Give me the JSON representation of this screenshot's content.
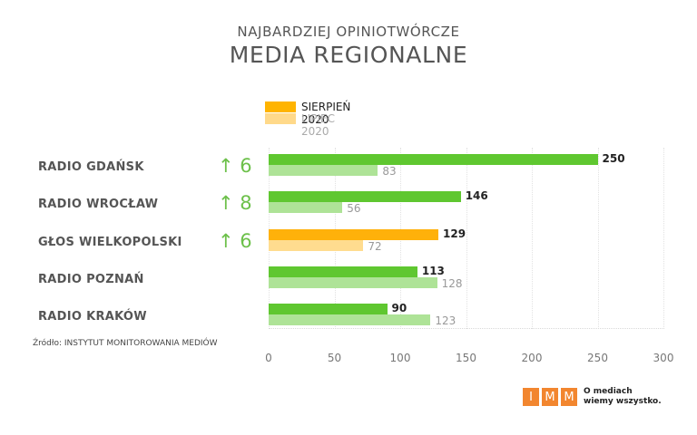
{
  "title": {
    "line1": "NAJBARDZIEJ OPINIOTWÓRCZE",
    "line2": "MEDIA REGIONALNE"
  },
  "legend": [
    {
      "label": "SIERPIEŃ 2020",
      "color": "#ffb400",
      "text_color": "#222222"
    },
    {
      "label": "LIPIEC 2020",
      "color": "#ffd98a",
      "text_color": "#aaaaaa"
    }
  ],
  "colors": {
    "current_green": "#5fc730",
    "previous_green": "#aee397",
    "current_orange": "#ffb10a",
    "previous_orange": "#ffdc8f",
    "change": "#6cc04a"
  },
  "rows": [
    {
      "name": "RADIO GDAŃSK",
      "change": "↑ 6",
      "current": 250,
      "previous": 83,
      "highlight": false
    },
    {
      "name": "RADIO WROCŁAW",
      "change": "↑ 8",
      "current": 146,
      "previous": 56,
      "highlight": false
    },
    {
      "name": "GŁOS WIELKOPOLSKI",
      "change": "↑ 6",
      "current": 129,
      "previous": 72,
      "highlight": true
    },
    {
      "name": "RADIO POZNAŃ",
      "change": "",
      "current": 113,
      "previous": 128,
      "highlight": false
    },
    {
      "name": "RADIO KRAKÓW",
      "change": "",
      "current": 90,
      "previous": 123,
      "highlight": false
    }
  ],
  "axis": {
    "ticks": [
      "0",
      "50",
      "100",
      "150",
      "200",
      "250",
      "300"
    ]
  },
  "source": "Źródło: INSTYTUT MONITOROWANIA MEDIÓW",
  "logo": {
    "letters": [
      "I",
      "M",
      "M"
    ],
    "tagline1": "O mediach",
    "tagline2": "wiemy wszystko."
  },
  "chart_data": {
    "type": "bar",
    "orientation": "horizontal",
    "title": "NAJBARDZIEJ OPINIOTWÓRCZE MEDIA REGIONALNE",
    "categories": [
      "RADIO GDAŃSK",
      "RADIO WROCŁAW",
      "GŁOS WIELKOPOLSKI",
      "RADIO POZNAŃ",
      "RADIO KRAKÓW"
    ],
    "series": [
      {
        "name": "SIERPIEŃ 2020",
        "values": [
          250,
          146,
          129,
          113,
          90
        ]
      },
      {
        "name": "LIPIEC 2020",
        "values": [
          83,
          56,
          72,
          128,
          123
        ]
      }
    ],
    "annotations": {
      "rank_change": [
        "↑ 6",
        "↑ 8",
        "↑ 6",
        "",
        ""
      ]
    },
    "xlim": [
      0,
      300
    ],
    "xticks": [
      0,
      50,
      100,
      150,
      200,
      250,
      300
    ],
    "grid": true,
    "legend_position": "top",
    "source": "Źródło: INSTYTUT MONITOROWANIA MEDIÓW"
  }
}
